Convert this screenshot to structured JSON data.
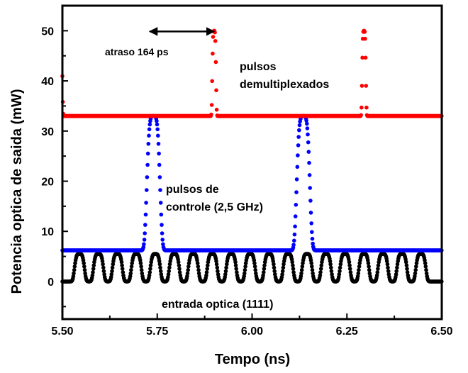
{
  "chart_data": {
    "type": "line",
    "xlabel": "Tempo (ns)",
    "ylabel": "Potencia optica de saida  (mW)",
    "xlim": [
      5.5,
      6.5
    ],
    "ylim": [
      -7.5,
      55
    ],
    "xticks": [
      5.5,
      5.75,
      6.0,
      6.25,
      6.5
    ],
    "xtick_labels": [
      "5.50",
      "5.75",
      "6.00",
      "6.25",
      "6.50"
    ],
    "yticks": [
      0,
      10,
      20,
      30,
      40,
      50
    ],
    "ytick_labels": [
      "0",
      "10",
      "20",
      "30",
      "40",
      "50"
    ],
    "grid": false,
    "legend": "none",
    "series": [
      {
        "color": "#000000",
        "kind": "pulse_train",
        "baseline": 0,
        "peak": 5.5,
        "peak_times": [
          5.545,
          5.595,
          5.645,
          5.695,
          5.745,
          5.795,
          5.845,
          5.895,
          5.945,
          5.995,
          6.045,
          6.095,
          6.145,
          6.195,
          6.245,
          6.295,
          6.345,
          6.395,
          6.445
        ],
        "pulse_width_ns": 0.012
      },
      {
        "color": "#0000ff",
        "kind": "pulse_train",
        "baseline": 6.2,
        "peak": 33,
        "peak_times": [
          5.74,
          6.135
        ],
        "pulse_width_ns": 0.016
      },
      {
        "color": "#ff0000",
        "kind": "pulse_train",
        "baseline": 33,
        "peak": 50,
        "peak_times": [
          5.495,
          5.9,
          6.295
        ],
        "pulse_width_ns": 0.0045
      }
    ],
    "annotations": {
      "delay": "atraso 164 ps",
      "demux_line1": "pulsos",
      "demux_line2": "demultiplexados",
      "control_line1": "pulsos de",
      "control_line2": "controle (2,5 GHz)",
      "input": "entrada optica (1111)"
    },
    "delay_arrow_x": [
      5.73,
      5.9
    ],
    "delay_arrow_y": 50
  }
}
